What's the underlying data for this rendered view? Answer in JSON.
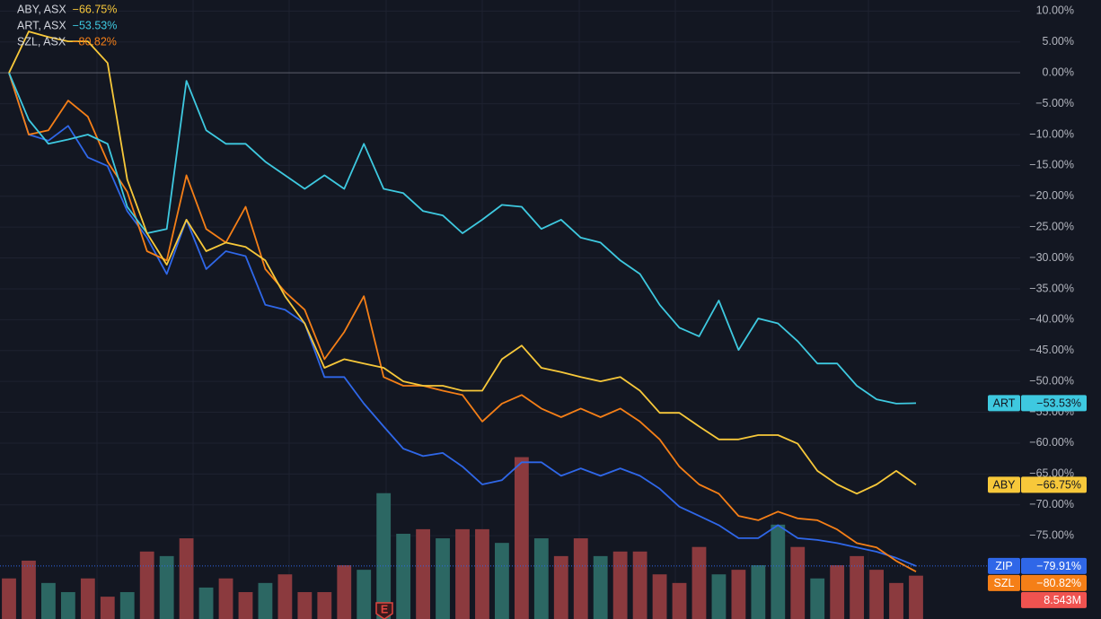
{
  "chart_data": {
    "type": "line",
    "ylim": [
      -88.5,
      11.8
    ],
    "yticks": [
      {
        "value": 10,
        "label": "10.00%"
      },
      {
        "value": 5,
        "label": "5.00%"
      },
      {
        "value": 0,
        "label": "0.00%"
      },
      {
        "value": -5,
        "label": "−5.00%"
      },
      {
        "value": -10,
        "label": "−10.00%"
      },
      {
        "value": -15,
        "label": "−15.00%"
      },
      {
        "value": -20,
        "label": "−20.00%"
      },
      {
        "value": -25,
        "label": "−25.00%"
      },
      {
        "value": -30,
        "label": "−30.00%"
      },
      {
        "value": -35,
        "label": "−35.00%"
      },
      {
        "value": -40,
        "label": "−40.00%"
      },
      {
        "value": -45,
        "label": "−45.00%"
      },
      {
        "value": -50,
        "label": "−50.00%"
      },
      {
        "value": -55,
        "label": "−55.00%"
      },
      {
        "value": -60,
        "label": "−60.00%"
      },
      {
        "value": -65,
        "label": "−65.00%"
      },
      {
        "value": -70,
        "label": "−70.00%"
      },
      {
        "value": -75,
        "label": "−75.00%"
      }
    ],
    "categories": [
      null,
      null,
      null,
      null,
      null,
      null,
      null,
      null,
      null,
      null,
      null,
      null,
      null,
      null,
      null,
      null,
      null,
      null,
      null,
      null,
      null,
      null,
      null,
      null,
      null,
      null,
      null,
      null,
      null,
      null,
      null,
      null,
      null,
      null,
      null,
      null,
      null,
      null,
      null,
      null,
      null,
      null,
      null,
      null,
      null,
      null,
      null
    ],
    "series": [
      {
        "tag": "ZIP",
        "color": "#2f67e8",
        "last_value": -79.91,
        "last_label": "−79.91%",
        "values": [
          0,
          -10.0,
          -11.0,
          -8.6,
          -13.7,
          -15.1,
          -22.4,
          -26.7,
          -32.6,
          -23.8,
          -31.8,
          -28.9,
          -29.7,
          -37.6,
          -38.4,
          -40.6,
          -49.3,
          -49.3,
          -53.6,
          -57.3,
          -60.9,
          -62.1,
          -61.6,
          -63.8,
          -66.7,
          -66.0,
          -63.1,
          -63.1,
          -65.3,
          -64.1,
          -65.3,
          -64.1,
          -65.3,
          -67.4,
          -70.3,
          -71.8,
          -73.3,
          -75.4,
          -75.4,
          -73.3,
          -75.4,
          -75.7,
          -76.2,
          -76.9,
          -77.6,
          -78.6,
          -79.91
        ]
      },
      {
        "name": "SZL, ASX",
        "tag": "SZL",
        "color": "#f57f17",
        "last_value": -80.82,
        "last_label": "−80.82%",
        "values": [
          0,
          -10.0,
          -9.3,
          -4.5,
          -7.1,
          -14.4,
          -19.3,
          -28.9,
          -30.4,
          -16.6,
          -25.3,
          -27.5,
          -21.7,
          -31.8,
          -35.5,
          -38.4,
          -46.4,
          -42.0,
          -36.2,
          -49.3,
          -50.7,
          -50.7,
          -51.5,
          -52.2,
          -56.5,
          -53.6,
          -52.2,
          -54.4,
          -55.8,
          -54.4,
          -55.8,
          -54.4,
          -56.5,
          -59.4,
          -63.8,
          -66.7,
          -68.2,
          -71.8,
          -72.5,
          -71.1,
          -72.2,
          -72.5,
          -74.0,
          -76.2,
          -76.9,
          -79.1,
          -80.82
        ]
      },
      {
        "name": "ART, ASX",
        "tag": "ART",
        "color": "#3ec9e0",
        "last_value": -53.53,
        "last_label": "−53.53%",
        "values": [
          0,
          -7.6,
          -11.5,
          -10.8,
          -10.0,
          -11.5,
          -21.7,
          -26.0,
          -25.3,
          -1.3,
          -9.3,
          -11.5,
          -11.5,
          -14.4,
          -16.6,
          -18.8,
          -16.6,
          -18.8,
          -11.5,
          -18.8,
          -19.5,
          -22.4,
          -23.1,
          -26.0,
          -23.8,
          -21.4,
          -21.7,
          -25.3,
          -23.8,
          -26.7,
          -27.5,
          -30.4,
          -32.6,
          -37.6,
          -41.3,
          -42.7,
          -36.9,
          -44.9,
          -39.8,
          -40.6,
          -43.5,
          -47.1,
          -47.1,
          -50.7,
          -52.9,
          -53.6,
          -53.53
        ]
      },
      {
        "name": "ABY, ASX",
        "tag": "ABY",
        "color": "#f7c83a",
        "last_value": -66.75,
        "last_label": "−66.75%",
        "values": [
          0,
          6.7,
          5.8,
          5.1,
          5.1,
          1.6,
          -17.3,
          -26.0,
          -31.1,
          -23.8,
          -28.9,
          -27.5,
          -28.2,
          -30.4,
          -36.2,
          -40.6,
          -47.8,
          -46.4,
          -47.1,
          -47.8,
          -50.0,
          -50.7,
          -50.7,
          -51.5,
          -51.5,
          -46.4,
          -44.2,
          -47.8,
          -48.5,
          -49.3,
          -50.0,
          -49.3,
          -51.5,
          -55.1,
          -55.1,
          -57.3,
          -59.4,
          -59.4,
          -58.7,
          -58.7,
          -60.1,
          -64.5,
          -66.7,
          -68.2,
          -66.7,
          -64.5,
          -66.75
        ]
      }
    ],
    "volume": {
      "ylim": [
        0,
        122
      ],
      "last_value": 8.543,
      "last_label": "8.543M",
      "label_color": "#f05350",
      "values": [
        8.0,
        11.5,
        7.1,
        5.3,
        8.0,
        4.4,
        5.3,
        13.3,
        12.4,
        15.9,
        6.2,
        8.0,
        5.3,
        7.1,
        8.8,
        5.3,
        5.3,
        10.6,
        9.7,
        24.8,
        16.8,
        17.7,
        15.9,
        17.7,
        17.7,
        15.0,
        31.9,
        15.9,
        12.4,
        15.9,
        12.4,
        13.3,
        13.3,
        8.8,
        7.1,
        14.2,
        8.8,
        9.7,
        10.6,
        18.6,
        14.2,
        8.0,
        10.6,
        12.4,
        9.7,
        7.1,
        8.543
      ],
      "colors": [
        "#8b3a3e",
        "#8b3a3e",
        "#2c6763",
        "#2c6763",
        "#8b3a3e",
        "#8b3a3e",
        "#2c6763",
        "#8b3a3e",
        "#2c6763",
        "#8b3a3e",
        "#2c6763",
        "#8b3a3e",
        "#8b3a3e",
        "#2c6763",
        "#8b3a3e",
        "#8b3a3e",
        "#8b3a3e",
        "#8b3a3e",
        "#2c6763",
        "#2c6763",
        "#2c6763",
        "#8b3a3e",
        "#2c6763",
        "#8b3a3e",
        "#8b3a3e",
        "#2c6763",
        "#8b3a3e",
        "#2c6763",
        "#8b3a3e",
        "#8b3a3e",
        "#2c6763",
        "#8b3a3e",
        "#8b3a3e",
        "#8b3a3e",
        "#8b3a3e",
        "#8b3a3e",
        "#2c6763",
        "#8b3a3e",
        "#2c6763",
        "#2c6763",
        "#8b3a3e",
        "#2c6763",
        "#8b3a3e",
        "#8b3a3e",
        "#8b3a3e",
        "#8b3a3e",
        "#8b3a3e"
      ]
    }
  }
}
